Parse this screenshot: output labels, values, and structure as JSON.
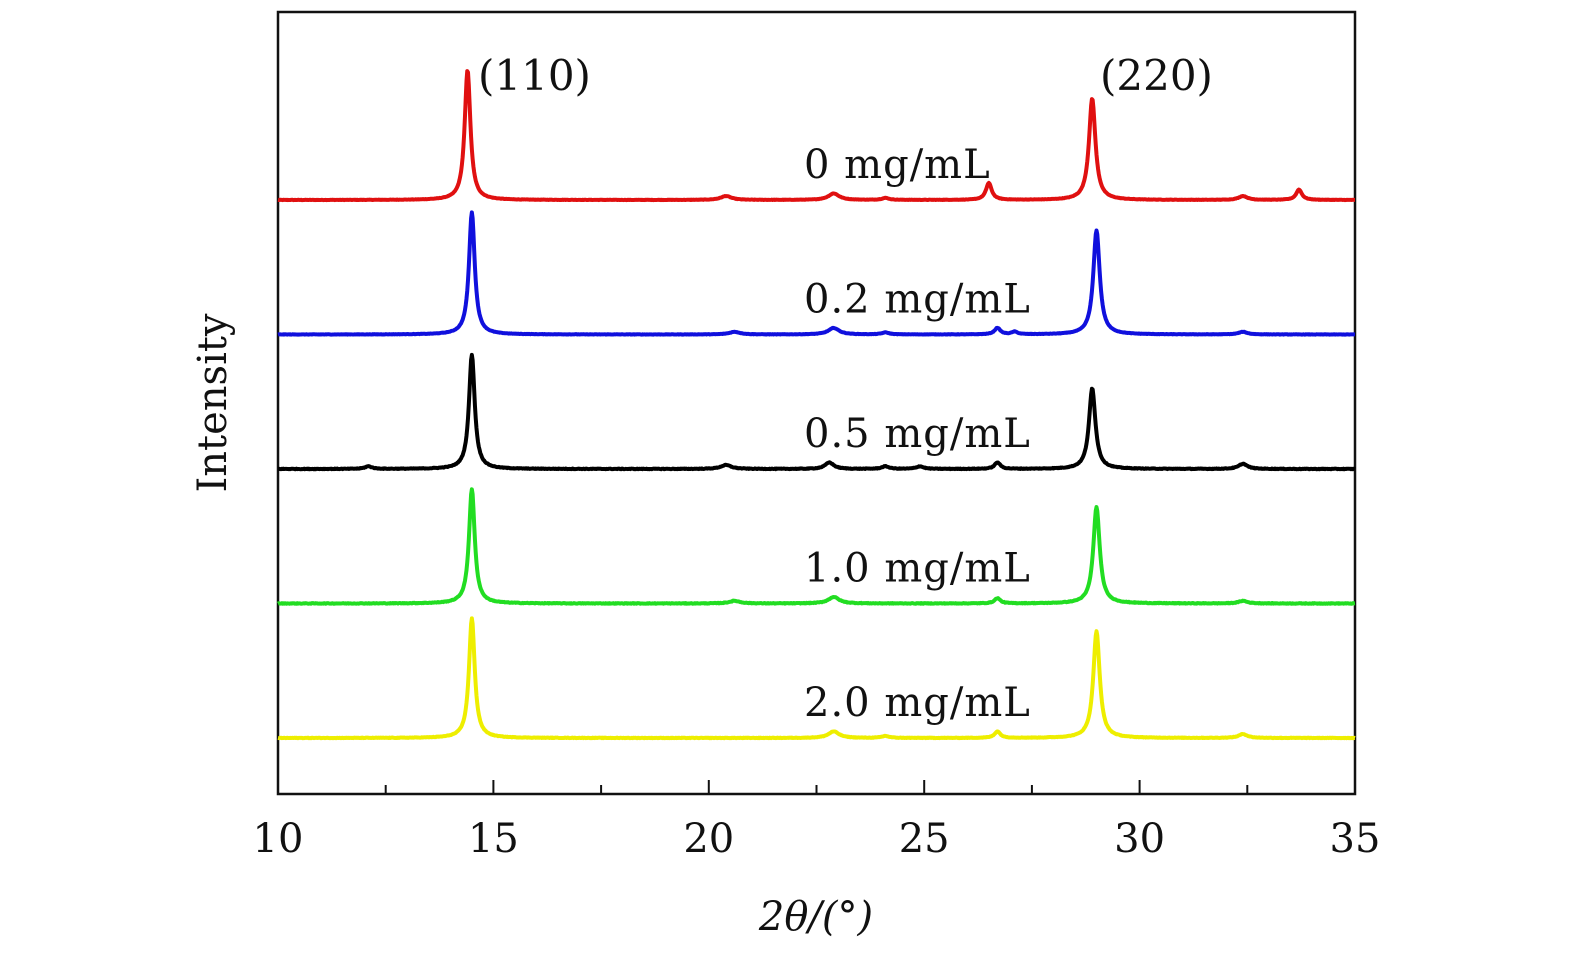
{
  "chart_data": {
    "type": "line",
    "title": "",
    "xlabel": "2θ/(°)",
    "ylabel": "Intensity",
    "xlim": [
      10,
      35
    ],
    "xticks": [
      10,
      15,
      20,
      25,
      30,
      35
    ],
    "xtick_labels": [
      "10",
      "15",
      "20",
      "25",
      "30",
      "35"
    ],
    "minor_xtick_step": 2.5,
    "y_ticks_shown": false,
    "annotations": {
      "peak_110": "(110)",
      "peak_220": "(220)"
    },
    "series": [
      {
        "name": "0 mg/mL",
        "color": "#e01010",
        "offset": 4,
        "noise": 0.15,
        "peaks": [
          {
            "x": 14.4,
            "h": 100,
            "w": 0.08
          },
          {
            "x": 28.9,
            "h": 78,
            "w": 0.09
          },
          {
            "x": 20.4,
            "h": 3,
            "w": 0.15
          },
          {
            "x": 22.9,
            "h": 5,
            "w": 0.15
          },
          {
            "x": 24.1,
            "h": 1.5,
            "w": 0.1
          },
          {
            "x": 26.5,
            "h": 13,
            "w": 0.08
          },
          {
            "x": 32.4,
            "h": 3,
            "w": 0.12
          },
          {
            "x": 33.7,
            "h": 8,
            "w": 0.08
          }
        ]
      },
      {
        "name": "0.2 mg/mL",
        "color": "#1010dd",
        "offset": 3,
        "noise": 0.15,
        "peaks": [
          {
            "x": 14.5,
            "h": 94,
            "w": 0.08
          },
          {
            "x": 29.0,
            "h": 80,
            "w": 0.09
          },
          {
            "x": 20.6,
            "h": 2,
            "w": 0.15
          },
          {
            "x": 22.9,
            "h": 5,
            "w": 0.15
          },
          {
            "x": 24.1,
            "h": 1.5,
            "w": 0.1
          },
          {
            "x": 26.7,
            "h": 5,
            "w": 0.08
          },
          {
            "x": 27.1,
            "h": 2,
            "w": 0.08
          },
          {
            "x": 32.4,
            "h": 2,
            "w": 0.12
          }
        ]
      },
      {
        "name": "0.5 mg/mL",
        "color": "#000000",
        "offset": 2,
        "noise": 0.25,
        "peaks": [
          {
            "x": 14.5,
            "h": 88,
            "w": 0.08
          },
          {
            "x": 28.9,
            "h": 62,
            "w": 0.09
          },
          {
            "x": 12.1,
            "h": 2,
            "w": 0.1
          },
          {
            "x": 20.4,
            "h": 3,
            "w": 0.15
          },
          {
            "x": 22.8,
            "h": 5,
            "w": 0.12
          },
          {
            "x": 24.1,
            "h": 2,
            "w": 0.1
          },
          {
            "x": 24.9,
            "h": 2,
            "w": 0.1
          },
          {
            "x": 26.7,
            "h": 5,
            "w": 0.08
          },
          {
            "x": 32.4,
            "h": 4,
            "w": 0.12
          }
        ]
      },
      {
        "name": "1.0 mg/mL",
        "color": "#22dd22",
        "offset": 1,
        "noise": 0.25,
        "peaks": [
          {
            "x": 14.5,
            "h": 88,
            "w": 0.08
          },
          {
            "x": 29.0,
            "h": 74,
            "w": 0.09
          },
          {
            "x": 20.6,
            "h": 2,
            "w": 0.15
          },
          {
            "x": 22.9,
            "h": 5,
            "w": 0.15
          },
          {
            "x": 26.7,
            "h": 4,
            "w": 0.08
          },
          {
            "x": 32.4,
            "h": 2,
            "w": 0.12
          }
        ]
      },
      {
        "name": "2.0 mg/mL",
        "color": "#eeee00",
        "offset": 0,
        "noise": 0.2,
        "peaks": [
          {
            "x": 14.5,
            "h": 92,
            "w": 0.08
          },
          {
            "x": 29.0,
            "h": 82,
            "w": 0.09
          },
          {
            "x": 22.9,
            "h": 5,
            "w": 0.15
          },
          {
            "x": 24.1,
            "h": 1.5,
            "w": 0.1
          },
          {
            "x": 26.7,
            "h": 5,
            "w": 0.08
          },
          {
            "x": 32.4,
            "h": 3,
            "w": 0.12
          }
        ]
      }
    ]
  }
}
